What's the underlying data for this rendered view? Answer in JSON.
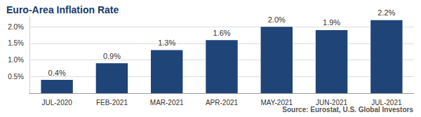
{
  "chart_data": {
    "type": "bar",
    "title": "Euro-Area Inflation Rate",
    "source": "Source: Eurostat, U.S. Global Investors",
    "categories": [
      "JUL-2020",
      "FEB-2021",
      "MAR-2021",
      "APR-2021",
      "MAY-2021",
      "JUN-2021",
      "JUL-2021"
    ],
    "values": [
      0.4,
      0.9,
      1.3,
      1.6,
      2.0,
      1.9,
      2.2
    ],
    "value_labels": [
      "0.4%",
      "0.9%",
      "1.3%",
      "1.6%",
      "2.0%",
      "1.9%",
      "2.2%"
    ],
    "color": "#1f4478",
    "ylim": [
      0,
      2.3
    ],
    "yticks": [
      {
        "value": 0.5,
        "label": "0.5%"
      },
      {
        "value": 1.0,
        "label": "1.0%"
      },
      {
        "value": 1.5,
        "label": "1.5%"
      },
      {
        "value": 2.0,
        "label": "2.0%"
      }
    ],
    "grid": true,
    "data_labels": true
  }
}
